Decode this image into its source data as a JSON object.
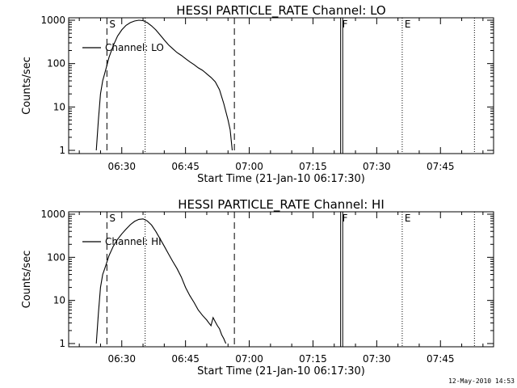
{
  "chart_data": [
    {
      "type": "line",
      "title": "HESSI PARTICLE_RATE Channel: LO",
      "xlabel": "Start Time (21-Jan-10 06:17:30)",
      "ylabel": "Counts/sec",
      "yscale": "log",
      "ylim": [
        1,
        1000
      ],
      "yticks": [
        "1",
        "10",
        "100",
        "1000"
      ],
      "xticks": [
        "06:30",
        "06:45",
        "07:00",
        "07:15",
        "07:30",
        "07:45"
      ],
      "xlim": [
        "06:17:30",
        "07:57:30"
      ],
      "grid": false,
      "legend_placement": "top-left",
      "series": [
        {
          "name": "Channel: LO",
          "points": [
            [
              "06:24:00",
              1
            ],
            [
              "06:24:30",
              5
            ],
            [
              "06:25:00",
              20
            ],
            [
              "06:25:30",
              40
            ],
            [
              "06:26:00",
              60
            ],
            [
              "06:27:00",
              140
            ],
            [
              "06:28:00",
              260
            ],
            [
              "06:29:00",
              430
            ],
            [
              "06:30:00",
              600
            ],
            [
              "06:31:00",
              760
            ],
            [
              "06:32:00",
              880
            ],
            [
              "06:33:00",
              960
            ],
            [
              "06:34:00",
              1000
            ],
            [
              "06:35:00",
              980
            ],
            [
              "06:36:00",
              880
            ],
            [
              "06:37:00",
              740
            ],
            [
              "06:38:00",
              600
            ],
            [
              "06:39:00",
              460
            ],
            [
              "06:40:00",
              350
            ],
            [
              "06:41:00",
              270
            ],
            [
              "06:42:00",
              220
            ],
            [
              "06:43:00",
              180
            ],
            [
              "06:44:00",
              155
            ],
            [
              "06:45:00",
              130
            ],
            [
              "06:46:00",
              110
            ],
            [
              "06:47:00",
              95
            ],
            [
              "06:48:00",
              80
            ],
            [
              "06:49:00",
              70
            ],
            [
              "06:50:00",
              58
            ],
            [
              "06:51:00",
              48
            ],
            [
              "06:52:00",
              38
            ],
            [
              "06:53:00",
              25
            ],
            [
              "06:54:00",
              12
            ],
            [
              "06:55:00",
              5
            ],
            [
              "06:55:30",
              3
            ],
            [
              "06:56:00",
              1
            ]
          ]
        }
      ],
      "markers": {
        "labels": [
          "S",
          "F",
          "E"
        ],
        "dashed": [
          "06:26:30",
          "06:56:30"
        ],
        "dotted": [
          "06:35:30",
          "07:36:00",
          "07:53:00"
        ],
        "solid": [
          "07:21:30",
          "07:22:00"
        ]
      }
    },
    {
      "type": "line",
      "title": "HESSI PARTICLE_RATE Channel: HI",
      "xlabel": "Start Time (21-Jan-10 06:17:30)",
      "ylabel": "Counts/sec",
      "yscale": "log",
      "ylim": [
        1,
        1000
      ],
      "yticks": [
        "1",
        "10",
        "100",
        "1000"
      ],
      "xticks": [
        "06:30",
        "06:45",
        "07:00",
        "07:15",
        "07:30",
        "07:45"
      ],
      "xlim": [
        "06:17:30",
        "07:57:30"
      ],
      "grid": false,
      "legend_placement": "top-left",
      "series": [
        {
          "name": "Channel: HI",
          "points": [
            [
              "06:24:00",
              1
            ],
            [
              "06:24:30",
              5
            ],
            [
              "06:25:00",
              20
            ],
            [
              "06:25:30",
              40
            ],
            [
              "06:26:00",
              55
            ],
            [
              "06:27:00",
              110
            ],
            [
              "06:28:00",
              180
            ],
            [
              "06:29:00",
              260
            ],
            [
              "06:30:00",
              350
            ],
            [
              "06:31:00",
              450
            ],
            [
              "06:32:00",
              570
            ],
            [
              "06:33:00",
              680
            ],
            [
              "06:34:00",
              760
            ],
            [
              "06:35:00",
              780
            ],
            [
              "06:36:00",
              700
            ],
            [
              "06:37:00",
              560
            ],
            [
              "06:38:00",
              400
            ],
            [
              "06:39:00",
              270
            ],
            [
              "06:40:00",
              180
            ],
            [
              "06:41:00",
              120
            ],
            [
              "06:42:00",
              80
            ],
            [
              "06:43:00",
              55
            ],
            [
              "06:44:00",
              35
            ],
            [
              "06:45:00",
              20
            ],
            [
              "06:46:00",
              13
            ],
            [
              "06:47:00",
              9
            ],
            [
              "06:48:00",
              6
            ],
            [
              "06:49:00",
              4.5
            ],
            [
              "06:50:00",
              3.5
            ],
            [
              "06:50:30",
              3
            ],
            [
              "06:51:00",
              2.6
            ],
            [
              "06:51:30",
              4
            ],
            [
              "06:52:00",
              3.2
            ],
            [
              "06:52:30",
              2.6
            ],
            [
              "06:53:00",
              2.2
            ],
            [
              "06:53:30",
              1.6
            ],
            [
              "06:54:00",
              1.3
            ],
            [
              "06:54:30",
              1
            ]
          ]
        }
      ],
      "markers": {
        "labels": [
          "S",
          "F",
          "E"
        ],
        "dashed": [
          "06:26:30",
          "06:56:30"
        ],
        "dotted": [
          "06:35:30",
          "07:36:00",
          "07:53:00"
        ],
        "solid": [
          "07:21:30",
          "07:22:00"
        ]
      }
    }
  ],
  "footer": {
    "timestamp": "12-May-2010 14:53"
  }
}
